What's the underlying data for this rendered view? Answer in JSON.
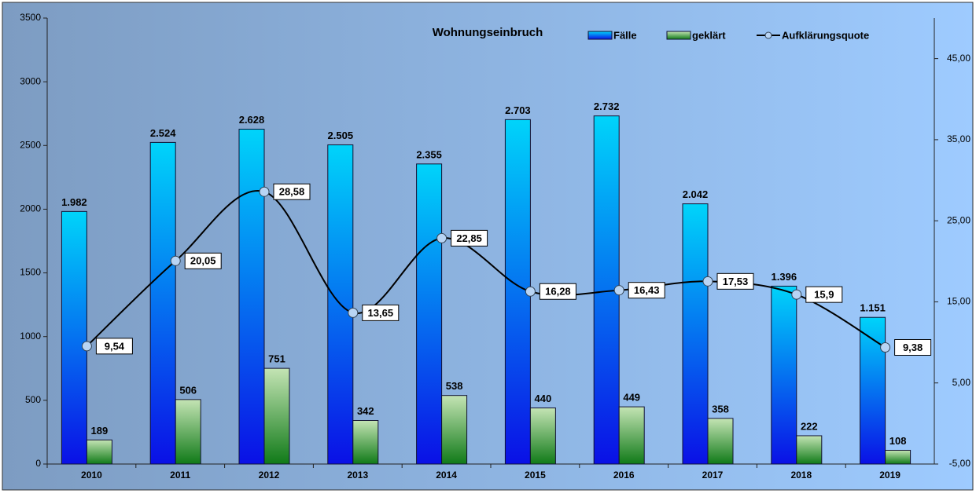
{
  "chart_data": {
    "type": "bar",
    "title": "Wohnungseinbruch",
    "categories": [
      "2010",
      "2011",
      "2012",
      "2013",
      "2014",
      "2015",
      "2016",
      "2017",
      "2018",
      "2019"
    ],
    "series": [
      {
        "name": "Fälle",
        "color": "#0a5cf0",
        "values": [
          1982,
          2524,
          2628,
          2505,
          2355,
          2703,
          2732,
          2042,
          1396,
          1151
        ],
        "value_labels": [
          "1.982",
          "2.524",
          "2.628",
          "2.505",
          "2.355",
          "2.703",
          "2.732",
          "2.042",
          "1.396",
          "1.151"
        ]
      },
      {
        "name": "geklärt",
        "color": "#5aa050",
        "values": [
          189,
          506,
          751,
          342,
          538,
          440,
          449,
          358,
          222,
          108
        ]
      },
      {
        "name": "Aufklärungsquote",
        "type": "line",
        "axis": "y2",
        "color": "#000000",
        "values": [
          9.54,
          20.05,
          28.58,
          13.65,
          22.85,
          16.28,
          16.43,
          17.53,
          15.9,
          9.38
        ],
        "value_labels": [
          "9,54",
          "20,05",
          "28,58",
          "13,65",
          "22,85",
          "16,28",
          "16,43",
          "17,53",
          "15,9",
          "9,38"
        ]
      }
    ],
    "ylim": [
      0,
      3500
    ],
    "yticks": [
      0,
      500,
      1000,
      1500,
      2000,
      2500,
      3000,
      3500
    ],
    "y2lim": [
      -5,
      50
    ],
    "y2ticks": [
      {
        "value": -5,
        "label": "-5,00"
      },
      {
        "value": 5,
        "label": "5,00"
      },
      {
        "value": 15,
        "label": "15,00"
      },
      {
        "value": 25,
        "label": "25,00"
      },
      {
        "value": 35,
        "label": "35,00"
      },
      {
        "value": 45,
        "label": "45,00"
      }
    ]
  }
}
